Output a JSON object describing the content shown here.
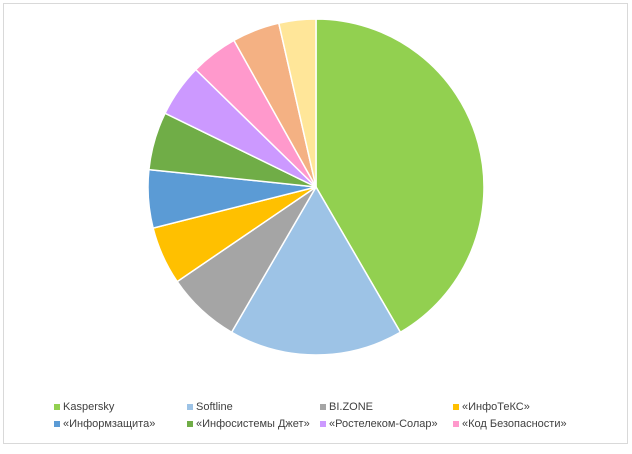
{
  "chart_data": {
    "type": "pie",
    "categories": [
      "Kaspersky",
      "Softline",
      "BI.ZONE",
      "«ИнфоТеКС»",
      "«Информзащита»",
      "«Инфосистемы Джет»",
      "«Ростелеком-Солар»",
      "«Код Безопасности»",
      null,
      null
    ],
    "values": [
      41,
      16.5,
      7,
      5.5,
      5.5,
      5.5,
      5,
      4.5,
      4.5,
      3.5
    ],
    "colors": [
      "#92d050",
      "#9dc3e6",
      "#a5a5a5",
      "#ffc000",
      "#5b9bd5",
      "#70ad47",
      "#cc99ff",
      "#ff99cc",
      "#f4b183",
      "#ffe699"
    ],
    "legend": "bottom"
  }
}
